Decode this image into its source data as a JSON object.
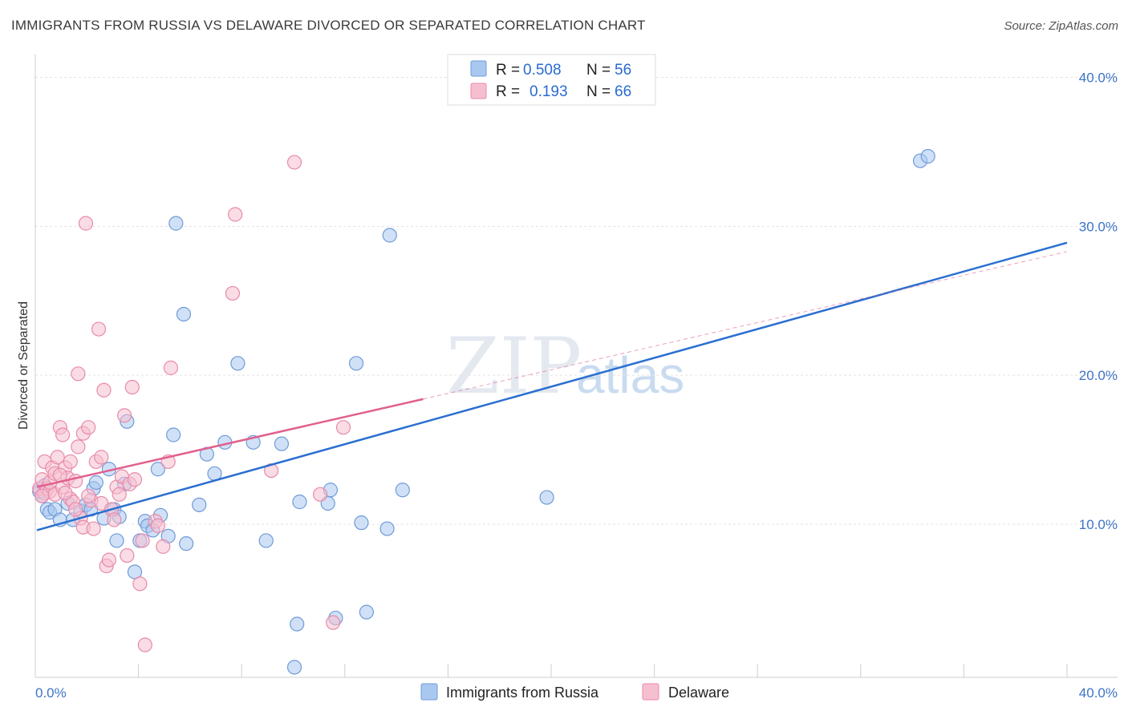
{
  "header": {
    "title": "IMMIGRANTS FROM RUSSIA VS DELAWARE DIVORCED OR SEPARATED CORRELATION CHART",
    "source": "Source: ZipAtlas.com"
  },
  "watermark": {
    "zip": "ZIP",
    "atlas": "atlas"
  },
  "legend": {
    "rows": [
      {
        "r_label": "R =",
        "r_value": "0.508",
        "n_label": "N =",
        "n_value": "56",
        "color": "#a9c8f0",
        "stroke": "#6f9bd8"
      },
      {
        "r_label": "R =",
        "r_value": "0.193",
        "n_label": "N =",
        "n_value": "66",
        "color": "#f6bfd0",
        "stroke": "#e88aaa"
      }
    ]
  },
  "bottom_legend": [
    {
      "label": "Immigrants from Russia",
      "color": "#a9c8f0",
      "stroke": "#6f9bd8"
    },
    {
      "label": "Delaware",
      "color": "#f6bfd0",
      "stroke": "#e88aaa"
    }
  ],
  "chart_data": {
    "type": "scatter",
    "title": "IMMIGRANTS FROM RUSSIA VS DELAWARE DIVORCED OR SEPARATED CORRELATION CHART",
    "xlabel": "",
    "ylabel": "Divorced or Separated",
    "xlim": [
      0,
      40
    ],
    "ylim": [
      0,
      40
    ],
    "x_tick_labels": [
      "0.0%",
      "40.0%"
    ],
    "y_ticks": [
      10,
      20,
      30,
      40
    ],
    "y_tick_labels": [
      "10.0%",
      "20.0%",
      "30.0%",
      "40.0%"
    ],
    "grid": true,
    "series": [
      {
        "name": "Immigrants from Russia",
        "color": "#a9c8f0",
        "stroke": "#6f9bd8",
        "line_color": "#2a6fd0",
        "trend": {
          "x": [
            0,
            40
          ],
          "y": [
            9.6,
            28.9
          ]
        },
        "points": [
          [
            0.1,
            12.2
          ],
          [
            0.2,
            11.9
          ],
          [
            0.3,
            12.6
          ],
          [
            0.4,
            11.0
          ],
          [
            0.5,
            10.8
          ],
          [
            0.7,
            11.0
          ],
          [
            0.9,
            10.3
          ],
          [
            1.2,
            11.4
          ],
          [
            1.4,
            10.3
          ],
          [
            1.7,
            10.9
          ],
          [
            1.9,
            11.3
          ],
          [
            2.1,
            11.0
          ],
          [
            2.2,
            12.4
          ],
          [
            2.3,
            12.8
          ],
          [
            2.6,
            10.4
          ],
          [
            2.8,
            13.7
          ],
          [
            3.0,
            11.0
          ],
          [
            3.1,
            8.9
          ],
          [
            3.2,
            10.5
          ],
          [
            3.4,
            12.7
          ],
          [
            3.5,
            16.9
          ],
          [
            3.8,
            6.8
          ],
          [
            4.0,
            8.9
          ],
          [
            4.2,
            10.2
          ],
          [
            4.3,
            9.9
          ],
          [
            4.5,
            9.6
          ],
          [
            4.7,
            13.7
          ],
          [
            4.8,
            10.6
          ],
          [
            5.1,
            9.2
          ],
          [
            5.3,
            16.0
          ],
          [
            5.4,
            30.2
          ],
          [
            5.7,
            24.1
          ],
          [
            5.8,
            8.7
          ],
          [
            6.3,
            11.3
          ],
          [
            6.6,
            14.7
          ],
          [
            6.9,
            13.4
          ],
          [
            7.3,
            15.5
          ],
          [
            7.8,
            20.8
          ],
          [
            8.4,
            15.5
          ],
          [
            8.9,
            8.9
          ],
          [
            9.5,
            15.4
          ],
          [
            10.1,
            3.3
          ],
          [
            10.2,
            11.5
          ],
          [
            11.3,
            11.4
          ],
          [
            11.4,
            12.3
          ],
          [
            11.6,
            3.7
          ],
          [
            12.4,
            20.8
          ],
          [
            12.6,
            10.1
          ],
          [
            12.8,
            4.1
          ],
          [
            13.6,
            9.7
          ],
          [
            13.7,
            29.4
          ],
          [
            14.2,
            12.3
          ],
          [
            10.0,
            0.4
          ],
          [
            19.8,
            11.8
          ],
          [
            34.3,
            34.4
          ],
          [
            34.6,
            34.7
          ]
        ]
      },
      {
        "name": "Delaware",
        "color": "#f6bfd0",
        "stroke": "#e88aaa",
        "line_color": "#e0608e",
        "trend": {
          "x": [
            0,
            15
          ],
          "y": [
            12.5,
            18.4
          ]
        },
        "trend_extension": {
          "x": [
            15,
            40
          ],
          "y": [
            18.4,
            28.3
          ]
        },
        "points": [
          [
            0.1,
            12.4
          ],
          [
            0.2,
            13.0
          ],
          [
            0.3,
            12.1
          ],
          [
            0.3,
            14.2
          ],
          [
            0.4,
            12.4
          ],
          [
            0.5,
            12.2
          ],
          [
            0.5,
            12.8
          ],
          [
            0.6,
            13.8
          ],
          [
            0.7,
            13.4
          ],
          [
            0.7,
            12.0
          ],
          [
            0.8,
            14.5
          ],
          [
            0.9,
            16.5
          ],
          [
            1.0,
            16.0
          ],
          [
            1.0,
            12.5
          ],
          [
            1.1,
            13.8
          ],
          [
            1.2,
            13.1
          ],
          [
            1.3,
            14.2
          ],
          [
            1.3,
            11.7
          ],
          [
            1.4,
            11.5
          ],
          [
            1.5,
            12.9
          ],
          [
            1.6,
            20.1
          ],
          [
            1.6,
            15.2
          ],
          [
            1.7,
            10.4
          ],
          [
            1.8,
            9.8
          ],
          [
            1.8,
            16.1
          ],
          [
            1.9,
            30.2
          ],
          [
            2.0,
            16.5
          ],
          [
            2.1,
            11.6
          ],
          [
            2.2,
            9.7
          ],
          [
            2.3,
            14.2
          ],
          [
            2.4,
            23.1
          ],
          [
            2.5,
            11.4
          ],
          [
            2.5,
            14.5
          ],
          [
            2.6,
            19.0
          ],
          [
            2.7,
            7.2
          ],
          [
            2.8,
            7.6
          ],
          [
            2.9,
            11.0
          ],
          [
            3.0,
            10.3
          ],
          [
            3.1,
            12.5
          ],
          [
            3.2,
            12.0
          ],
          [
            3.3,
            13.2
          ],
          [
            3.4,
            17.3
          ],
          [
            3.5,
            7.9
          ],
          [
            3.6,
            12.7
          ],
          [
            3.7,
            19.2
          ],
          [
            3.8,
            13.0
          ],
          [
            4.0,
            6.0
          ],
          [
            4.1,
            8.9
          ],
          [
            4.2,
            1.9
          ],
          [
            4.6,
            10.2
          ],
          [
            4.7,
            9.9
          ],
          [
            4.9,
            8.5
          ],
          [
            5.1,
            14.2
          ],
          [
            5.2,
            20.5
          ],
          [
            7.6,
            25.5
          ],
          [
            7.7,
            30.8
          ],
          [
            9.1,
            13.6
          ],
          [
            10.0,
            34.3
          ],
          [
            11.0,
            12.0
          ],
          [
            11.5,
            3.4
          ],
          [
            11.9,
            16.5
          ],
          [
            0.2,
            11.9
          ],
          [
            1.1,
            12.1
          ],
          [
            2.0,
            11.9
          ],
          [
            1.5,
            11.0
          ],
          [
            0.9,
            13.3
          ]
        ]
      }
    ]
  }
}
